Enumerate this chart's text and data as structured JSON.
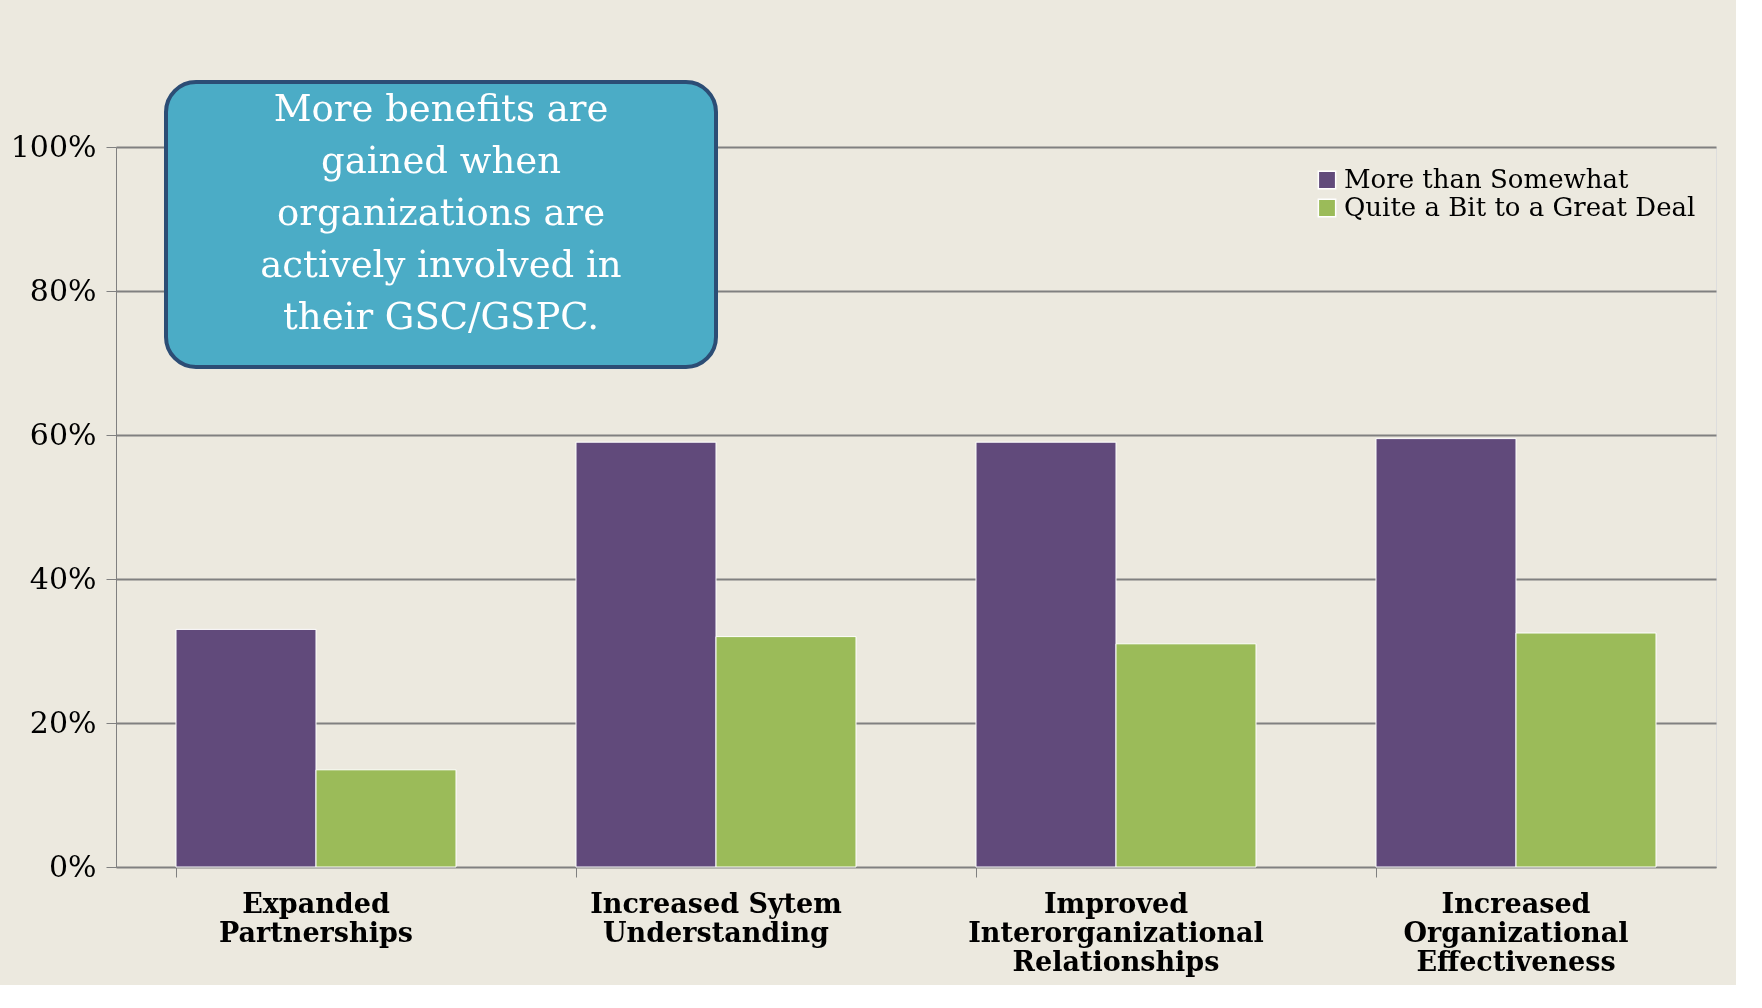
{
  "chart_data": {
    "type": "bar",
    "categories": [
      "Expanded Partnerships",
      "Increased Sytem Understanding",
      "Improved Interorganizational Relationships",
      "Increased Organizational Effectiveness"
    ],
    "series": [
      {
        "name": "More than Somewhat",
        "color": "#614a7b",
        "values": [
          33,
          59,
          59,
          59.5
        ]
      },
      {
        "name": "Quite a Bit to a Great Deal",
        "color": "#9bbb59",
        "values": [
          13.5,
          32,
          31,
          32.5
        ]
      }
    ],
    "ylim": [
      0,
      100
    ],
    "yticks": [
      {
        "value": 0,
        "label": "0%"
      },
      {
        "value": 20,
        "label": "20%"
      },
      {
        "value": 40,
        "label": "40%"
      },
      {
        "value": 60,
        "label": "60%"
      },
      {
        "value": 80,
        "label": "80%"
      },
      {
        "value": 100,
        "label": "100%"
      }
    ],
    "grid": "y",
    "legend": "top right",
    "annotations": [
      "More benefits are gained when organizations are actively involved in their GSC/GSPC."
    ]
  }
}
